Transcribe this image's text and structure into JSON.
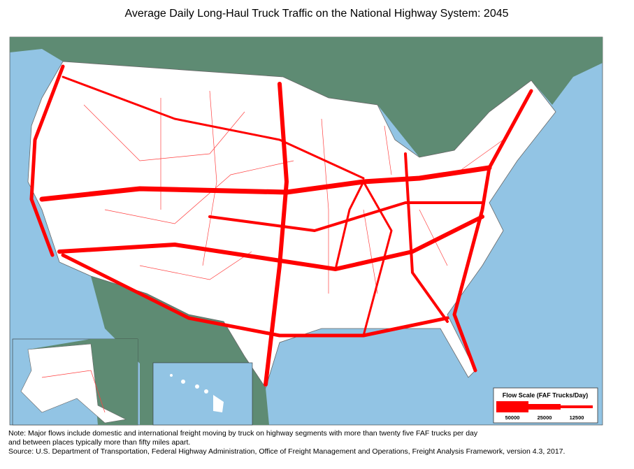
{
  "title": "Average Daily Long-Haul Truck Traffic on the National Highway System: 2045",
  "legend": {
    "title": "Flow Scale (FAF Trucks/Day)",
    "items": [
      50000,
      25000,
      12500
    ]
  },
  "notes": [
    "Note: Major flows include domestic and international freight moving by truck on highway segments with more than twenty five FAF trucks per day",
    "and between places typically more than fifty miles apart.",
    "Source:  U.S. Department of Transportation, Federal Highway Administration, Office of Freight Management and Operations, Freight Analysis Framework, version 4.3, 2017."
  ]
}
